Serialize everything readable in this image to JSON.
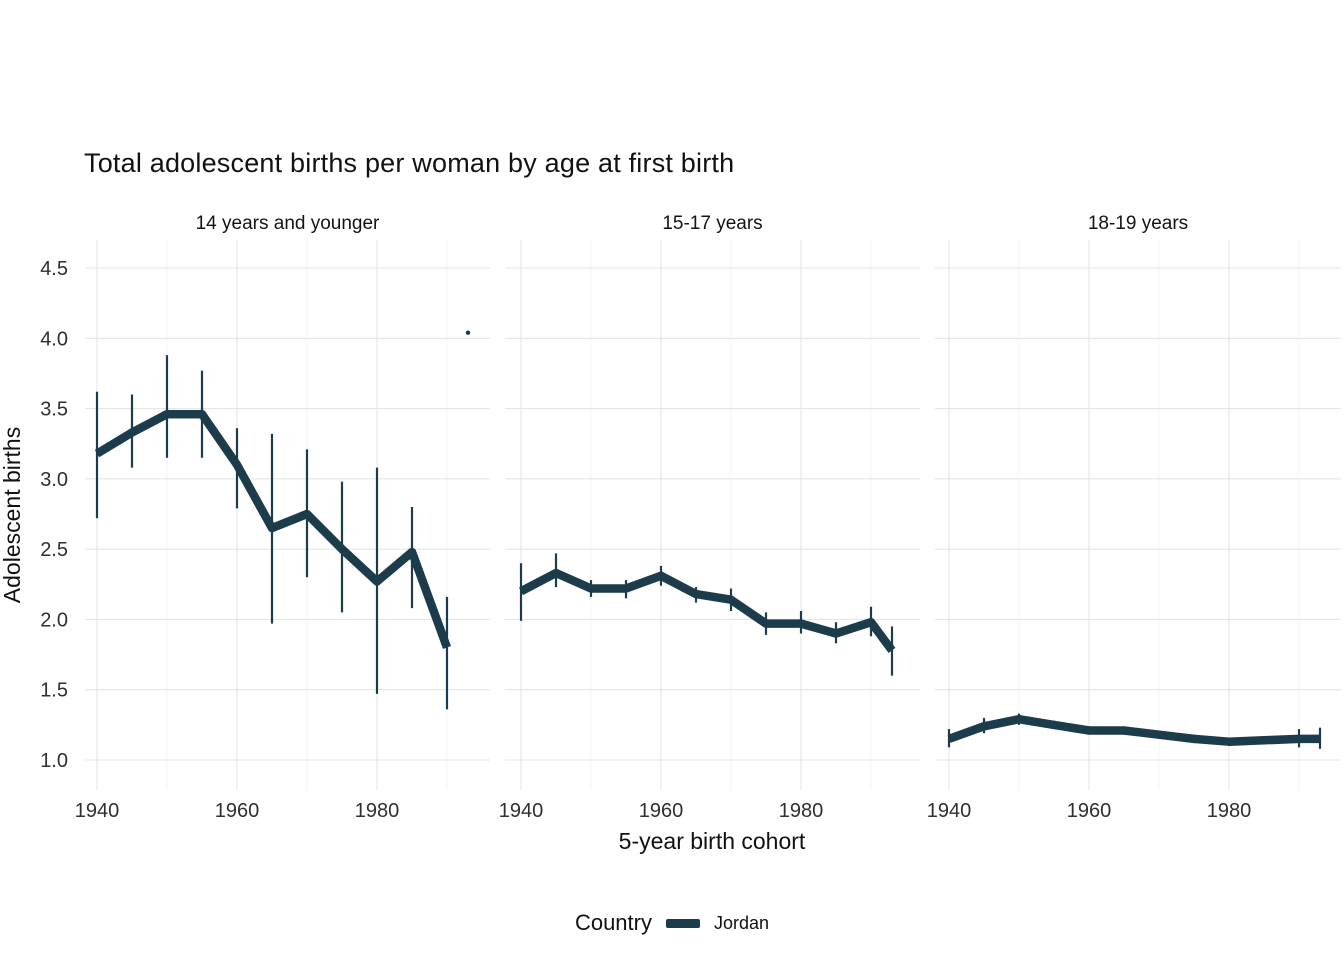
{
  "title": "Total adolescent births per woman by age at first birth",
  "axes": {
    "x_label": "5-year birth cohort",
    "y_label": "Adolescent births"
  },
  "legend": {
    "title": "Country",
    "items": [
      {
        "label": "Jordan",
        "color": "#1c3c4c"
      }
    ]
  },
  "colors": {
    "series": "#1c3c4c",
    "grid_major": "#e5e5e5",
    "grid_minor": "#f1f1f1",
    "text": "#121212",
    "tick_text": "#2f2f2f",
    "background": "#ffffff"
  },
  "chart_data": {
    "type": "line",
    "title": "Total adolescent births per woman by age at first birth",
    "xlabel": "5-year birth cohort",
    "ylabel": "Adolescent births",
    "series_name": "Jordan",
    "series_color": "#1c3c4c",
    "error_bars": true,
    "legend_position": "bottom",
    "grid": true,
    "ylim": [
      1.0,
      4.5
    ],
    "y_ticks": [
      4.5,
      4.0,
      3.5,
      3.0,
      2.5,
      2.0,
      1.5,
      1.0
    ],
    "x_ticks": [
      1940,
      1960,
      1980
    ],
    "x_minor_ticks": [
      1950,
      1970,
      1990
    ],
    "facets": [
      {
        "label": "14 years and younger",
        "x": [
          1940,
          1945,
          1950,
          1955,
          1960,
          1965,
          1970,
          1975,
          1980,
          1985,
          1990
        ],
        "y": [
          3.18,
          3.33,
          3.46,
          3.46,
          3.1,
          2.65,
          2.75,
          2.5,
          2.27,
          2.48,
          1.8
        ],
        "lo": [
          2.72,
          3.08,
          3.15,
          3.15,
          2.79,
          1.97,
          2.3,
          2.05,
          1.47,
          2.08,
          1.36
        ],
        "hi": [
          3.62,
          3.6,
          3.88,
          3.77,
          3.36,
          3.32,
          3.21,
          2.98,
          3.08,
          2.8,
          2.16
        ],
        "outlier_points": [
          {
            "x": 1993,
            "y": 4.04
          }
        ]
      },
      {
        "label": "15-17 years",
        "x": [
          1940,
          1945,
          1950,
          1955,
          1960,
          1965,
          1970,
          1975,
          1980,
          1985,
          1990,
          1993
        ],
        "y": [
          2.2,
          2.33,
          2.22,
          2.22,
          2.31,
          2.18,
          2.14,
          1.97,
          1.97,
          1.9,
          1.98,
          1.78
        ],
        "lo": [
          1.99,
          2.23,
          2.16,
          2.15,
          2.24,
          2.12,
          2.06,
          1.89,
          1.9,
          1.83,
          1.88,
          1.6
        ],
        "hi": [
          2.4,
          2.47,
          2.28,
          2.28,
          2.38,
          2.23,
          2.22,
          2.05,
          2.06,
          1.98,
          2.09,
          1.95
        ],
        "outlier_points": []
      },
      {
        "label": "18-19 years",
        "x": [
          1940,
          1945,
          1950,
          1955,
          1960,
          1965,
          1970,
          1975,
          1980,
          1985,
          1990,
          1993
        ],
        "y": [
          1.15,
          1.24,
          1.29,
          1.25,
          1.21,
          1.21,
          1.18,
          1.15,
          1.13,
          1.14,
          1.15,
          1.15
        ],
        "lo": [
          1.09,
          1.19,
          1.25,
          1.22,
          1.19,
          1.18,
          1.15,
          1.12,
          1.1,
          1.11,
          1.09,
          1.08
        ],
        "hi": [
          1.22,
          1.3,
          1.33,
          1.28,
          1.24,
          1.23,
          1.21,
          1.18,
          1.16,
          1.17,
          1.22,
          1.23
        ],
        "outlier_points": []
      }
    ]
  }
}
